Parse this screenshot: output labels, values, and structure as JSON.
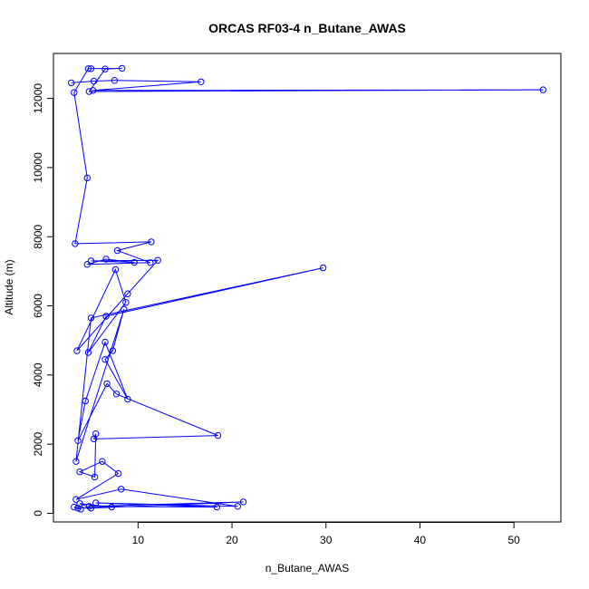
{
  "chart_data": {
    "type": "line",
    "title": "ORCAS RF03-4 n_Butane_AWAS",
    "xlabel": "n_Butane_AWAS",
    "ylabel": "Altitude (m)",
    "xlim": [
      1.0,
      55.0
    ],
    "ylim": [
      -250,
      13300
    ],
    "xticks": [
      10,
      20,
      30,
      40,
      50
    ],
    "yticks": [
      0,
      2000,
      4000,
      6000,
      8000,
      10000,
      12000
    ],
    "grid": false,
    "legend": "none",
    "series_color": "#0000ff",
    "series": [
      {
        "values": [
          [
            2.9,
            12450
          ],
          [
            5.3,
            12500
          ],
          [
            7.5,
            12520
          ],
          [
            16.7,
            12480
          ],
          [
            5.2,
            12230
          ],
          [
            53.1,
            12250
          ],
          [
            4.8,
            12200
          ],
          [
            6.5,
            12850
          ],
          [
            8.3,
            12870
          ],
          [
            5.0,
            12860
          ],
          [
            4.7,
            12860
          ],
          [
            3.2,
            12170
          ],
          [
            4.6,
            9700
          ],
          [
            3.3,
            7800
          ],
          [
            11.4,
            7850
          ],
          [
            7.8,
            7600
          ],
          [
            11.3,
            7250
          ],
          [
            4.6,
            7200
          ],
          [
            6.6,
            7350
          ],
          [
            9.6,
            7260
          ],
          [
            5.0,
            7300
          ],
          [
            12.1,
            7320
          ],
          [
            8.9,
            6350
          ],
          [
            3.5,
            4700
          ],
          [
            7.6,
            7050
          ],
          [
            8.7,
            6100
          ],
          [
            4.7,
            4650
          ],
          [
            6.6,
            5700
          ],
          [
            29.7,
            7100
          ],
          [
            5.0,
            5650
          ],
          [
            3.4,
            1500
          ],
          [
            8.5,
            5900
          ],
          [
            7.3,
            4700
          ],
          [
            6.5,
            4450
          ],
          [
            8.9,
            3300
          ],
          [
            6.5,
            4950
          ],
          [
            4.4,
            3250
          ],
          [
            3.6,
            2100
          ],
          [
            6.7,
            3750
          ],
          [
            7.7,
            3450
          ],
          [
            18.5,
            2250
          ],
          [
            5.3,
            2150
          ],
          [
            5.5,
            2300
          ],
          [
            5.4,
            1050
          ],
          [
            3.8,
            1200
          ],
          [
            6.2,
            1500
          ],
          [
            7.9,
            1150
          ],
          [
            3.4,
            400
          ],
          [
            8.2,
            700
          ],
          [
            20.6,
            200
          ],
          [
            5.5,
            300
          ],
          [
            18.4,
            180
          ],
          [
            4.8,
            200
          ],
          [
            21.2,
            330
          ],
          [
            5.0,
            150
          ],
          [
            3.8,
            280
          ],
          [
            7.2,
            180
          ],
          [
            3.6,
            150
          ],
          [
            3.2,
            180
          ],
          [
            3.9,
            120
          ]
        ]
      }
    ]
  }
}
